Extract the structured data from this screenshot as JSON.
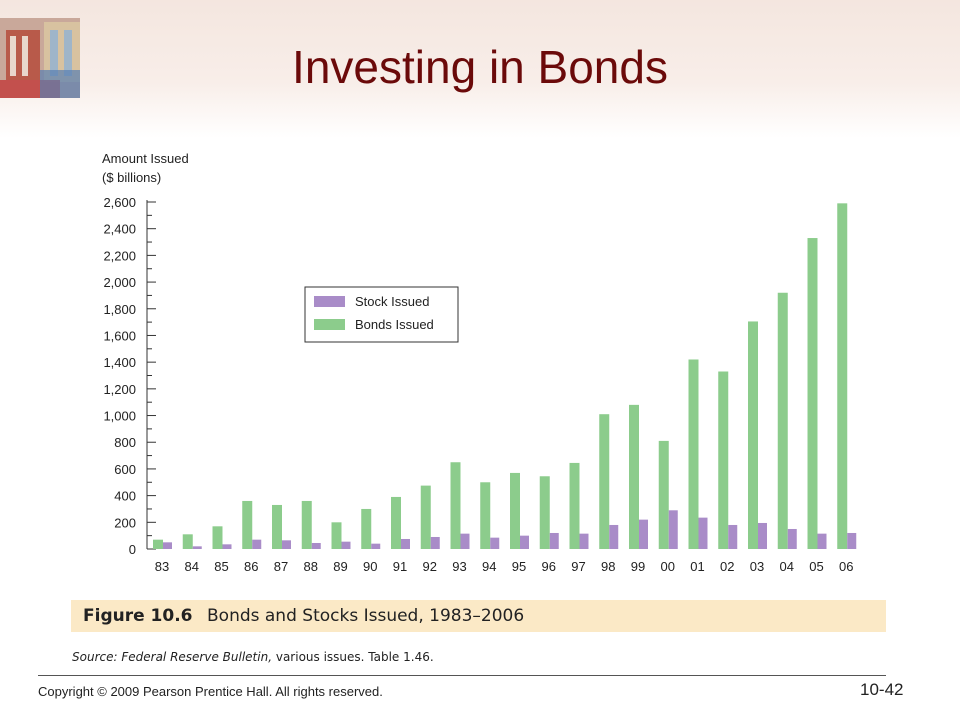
{
  "slide": {
    "title": "Investing in Bonds",
    "copyright": "Copyright © 2009 Pearson Prentice Hall. All rights reserved.",
    "slide_number": "10-42"
  },
  "figure": {
    "number": "Figure 10.6",
    "caption": "Bonds and Stocks Issued, 1983–2006",
    "source_label": "Source:",
    "source_title": "Federal Reserve Bulletin,",
    "source_rest": "various issues. Table 1.46."
  },
  "colors": {
    "stock": "#a98cc8",
    "bonds": "#8ccc8c",
    "title": "#6b0a0a",
    "caption_bg": "#fbe9c6"
  },
  "chart_data": {
    "type": "bar",
    "ylabel_line1": "Amount Issued",
    "ylabel_line2": "($ billions)",
    "ylim": [
      0,
      2600
    ],
    "yticks": [
      "0",
      "200",
      "400",
      "600",
      "800",
      "1,000",
      "1,200",
      "1,400",
      "1,600",
      "1,800",
      "2,000",
      "2,200",
      "2,400",
      "2,600"
    ],
    "categories": [
      "83",
      "84",
      "85",
      "86",
      "87",
      "88",
      "89",
      "90",
      "91",
      "92",
      "93",
      "94",
      "95",
      "96",
      "97",
      "98",
      "99",
      "00",
      "01",
      "02",
      "03",
      "04",
      "05",
      "06"
    ],
    "legend_position": "upper-left",
    "series": [
      {
        "name": "Stock Issued",
        "values": [
          50,
          20,
          35,
          70,
          65,
          45,
          55,
          40,
          75,
          90,
          115,
          85,
          100,
          120,
          115,
          180,
          220,
          290,
          235,
          180,
          195,
          150,
          115,
          120
        ]
      },
      {
        "name": "Bonds Issued",
        "values": [
          70,
          110,
          170,
          360,
          330,
          360,
          200,
          300,
          390,
          475,
          650,
          500,
          570,
          545,
          645,
          1010,
          1080,
          810,
          1420,
          1330,
          1705,
          1920,
          2330,
          2590
        ]
      }
    ]
  }
}
